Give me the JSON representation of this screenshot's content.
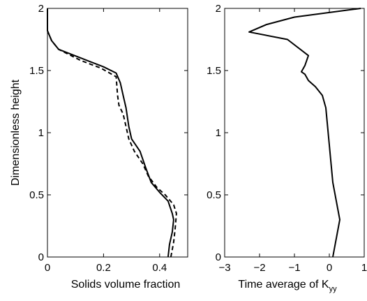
{
  "chart_data": [
    {
      "type": "line",
      "xlabel": "Solids volume fraction",
      "ylabel": "Dimensionless height",
      "xlim": [
        0,
        0.5
      ],
      "ylim": [
        0,
        2
      ],
      "xticks": [
        "0",
        "0.2",
        "0.4"
      ],
      "yticks": [
        "0",
        "0.5",
        "1",
        "1.5",
        "2"
      ],
      "grid": false,
      "series": [
        {
          "style": "solid",
          "color": "#000000",
          "points": [
            [
              0.43,
              0
            ],
            [
              0.435,
              0.1
            ],
            [
              0.445,
              0.2
            ],
            [
              0.45,
              0.3
            ],
            [
              0.445,
              0.35
            ],
            [
              0.43,
              0.45
            ],
            [
              0.4,
              0.52
            ],
            [
              0.37,
              0.6
            ],
            [
              0.35,
              0.72
            ],
            [
              0.33,
              0.85
            ],
            [
              0.3,
              0.95
            ],
            [
              0.29,
              1.05
            ],
            [
              0.28,
              1.2
            ],
            [
              0.27,
              1.3
            ],
            [
              0.26,
              1.4
            ],
            [
              0.245,
              1.48
            ],
            [
              0.2,
              1.53
            ],
            [
              0.12,
              1.6
            ],
            [
              0.04,
              1.67
            ],
            [
              0.015,
              1.74
            ],
            [
              0.0,
              1.82
            ],
            [
              0.0,
              2.0
            ]
          ]
        },
        {
          "style": "dashed",
          "color": "#000000",
          "points": [
            [
              0.44,
              0
            ],
            [
              0.45,
              0.12
            ],
            [
              0.455,
              0.22
            ],
            [
              0.46,
              0.35
            ],
            [
              0.45,
              0.42
            ],
            [
              0.42,
              0.5
            ],
            [
              0.39,
              0.56
            ],
            [
              0.36,
              0.65
            ],
            [
              0.34,
              0.75
            ],
            [
              0.31,
              0.85
            ],
            [
              0.29,
              0.95
            ],
            [
              0.28,
              1.05
            ],
            [
              0.27,
              1.15
            ],
            [
              0.255,
              1.22
            ],
            [
              0.25,
              1.3
            ],
            [
              0.245,
              1.45
            ],
            [
              0.19,
              1.52
            ],
            [
              0.12,
              1.58
            ],
            [
              0.04,
              1.67
            ],
            [
              0.015,
              1.74
            ],
            [
              0.0,
              1.82
            ],
            [
              0.0,
              2.0
            ]
          ]
        }
      ]
    },
    {
      "type": "line",
      "xlabel": "Time average of K",
      "xlabel_sub": "yy",
      "ylabel": "",
      "xlim": [
        -3,
        1
      ],
      "ylim": [
        0,
        2
      ],
      "xticks": [
        "−3",
        "−2",
        "−1",
        "0",
        "1"
      ],
      "yticks": [
        "0",
        "0.5",
        "1",
        "1.5",
        "2"
      ],
      "grid": false,
      "series": [
        {
          "style": "solid",
          "color": "#000000",
          "points": [
            [
              0.1,
              0
            ],
            [
              0.2,
              0.15
            ],
            [
              0.3,
              0.3
            ],
            [
              0.2,
              0.45
            ],
            [
              0.1,
              0.6
            ],
            [
              0.05,
              0.75
            ],
            [
              0.0,
              0.9
            ],
            [
              -0.05,
              1.05
            ],
            [
              -0.1,
              1.2
            ],
            [
              -0.2,
              1.3
            ],
            [
              -0.4,
              1.37
            ],
            [
              -0.6,
              1.42
            ],
            [
              -0.7,
              1.47
            ],
            [
              -0.8,
              1.49
            ],
            [
              -0.7,
              1.54
            ],
            [
              -0.6,
              1.62
            ],
            [
              -1.2,
              1.75
            ],
            [
              -2.3,
              1.81
            ],
            [
              -1.8,
              1.87
            ],
            [
              -1.0,
              1.93
            ],
            [
              0.9,
              2.0
            ]
          ]
        }
      ]
    }
  ]
}
